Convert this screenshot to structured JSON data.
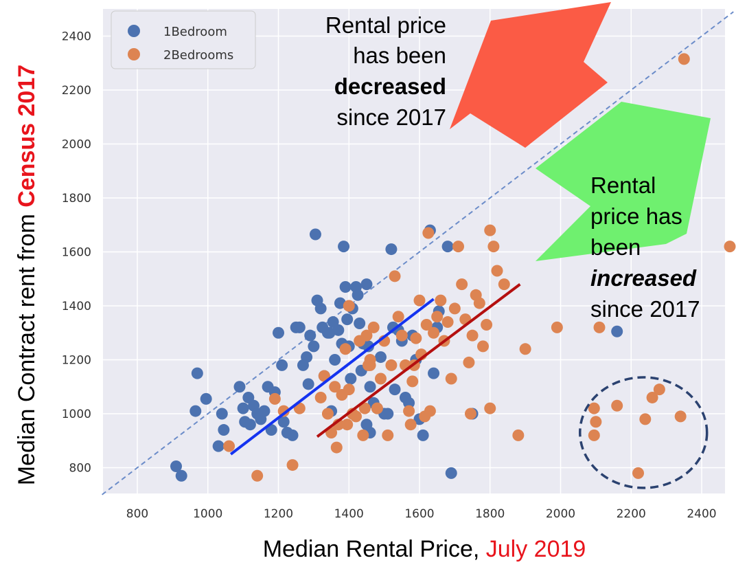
{
  "chart_data": {
    "type": "scatter",
    "xlabel": {
      "main": "Median Rental Price, ",
      "highlight": "July 2019"
    },
    "ylabel": {
      "main": "Median Contract rent from ",
      "highlight": "Census 2017"
    },
    "xlim": [
      700,
      2490
    ],
    "ylim": [
      700,
      2500
    ],
    "x_ticks": [
      800,
      1000,
      1200,
      1400,
      1600,
      1800,
      2000,
      2200,
      2400
    ],
    "y_ticks": [
      800,
      1000,
      1200,
      1400,
      1600,
      1800,
      2000,
      2200,
      2400
    ],
    "grid": true,
    "background_color": "#eaeaf2",
    "legend_position": "top-left",
    "identity_line": {
      "from": [
        700,
        700
      ],
      "to": [
        2490,
        2490
      ],
      "color": "#6b8cc9"
    },
    "series": [
      {
        "name": "1Bedroom",
        "color": "#4c72b0",
        "points": [
          [
            910,
            805
          ],
          [
            925,
            770
          ],
          [
            970,
            1150
          ],
          [
            965,
            1010
          ],
          [
            995,
            1055
          ],
          [
            1040,
            1000
          ],
          [
            1030,
            880
          ],
          [
            1045,
            940
          ],
          [
            1090,
            1100
          ],
          [
            1100,
            1020
          ],
          [
            1105,
            970
          ],
          [
            1115,
            1060
          ],
          [
            1130,
            1030
          ],
          [
            1140,
            1000
          ],
          [
            1120,
            960
          ],
          [
            1150,
            980
          ],
          [
            1160,
            1010
          ],
          [
            1170,
            1100
          ],
          [
            1180,
            940
          ],
          [
            1190,
            1080
          ],
          [
            1200,
            1300
          ],
          [
            1210,
            1180
          ],
          [
            1215,
            970
          ],
          [
            1225,
            930
          ],
          [
            1240,
            920
          ],
          [
            1250,
            1320
          ],
          [
            1260,
            1320
          ],
          [
            1270,
            1180
          ],
          [
            1280,
            1210
          ],
          [
            1285,
            1110
          ],
          [
            1290,
            1290
          ],
          [
            1300,
            1250
          ],
          [
            1305,
            1665
          ],
          [
            1310,
            1420
          ],
          [
            1320,
            1390
          ],
          [
            1325,
            1320
          ],
          [
            1330,
            1140
          ],
          [
            1340,
            1300
          ],
          [
            1345,
            1300
          ],
          [
            1350,
            1010
          ],
          [
            1355,
            1340
          ],
          [
            1360,
            1200
          ],
          [
            1370,
            1310
          ],
          [
            1375,
            1410
          ],
          [
            1380,
            1260
          ],
          [
            1385,
            1620
          ],
          [
            1390,
            1470
          ],
          [
            1395,
            1350
          ],
          [
            1400,
            1250
          ],
          [
            1405,
            1130
          ],
          [
            1410,
            1390
          ],
          [
            1420,
            1470
          ],
          [
            1425,
            1440
          ],
          [
            1430,
            1335
          ],
          [
            1435,
            1160
          ],
          [
            1440,
            1260
          ],
          [
            1450,
            1480
          ],
          [
            1455,
            1250
          ],
          [
            1460,
            1100
          ],
          [
            1470,
            1040
          ],
          [
            1480,
            1020
          ],
          [
            1490,
            1210
          ],
          [
            1500,
            1000
          ],
          [
            1510,
            1000
          ],
          [
            1520,
            1610
          ],
          [
            1525,
            1320
          ],
          [
            1530,
            1090
          ],
          [
            1540,
            1310
          ],
          [
            1550,
            1270
          ],
          [
            1560,
            1060
          ],
          [
            1570,
            1040
          ],
          [
            1580,
            1290
          ],
          [
            1590,
            1200
          ],
          [
            1600,
            980
          ],
          [
            1610,
            920
          ],
          [
            1630,
            1680
          ],
          [
            1640,
            1150
          ],
          [
            1650,
            1320
          ],
          [
            1655,
            1380
          ],
          [
            1680,
            1620
          ],
          [
            1690,
            780
          ],
          [
            1750,
            1000
          ],
          [
            1450,
            960
          ],
          [
            1460,
            930
          ],
          [
            2160,
            1305
          ]
        ]
      },
      {
        "name": "2Bedrooms",
        "color": "#dd8452",
        "points": [
          [
            1060,
            880
          ],
          [
            1140,
            770
          ],
          [
            1190,
            1055
          ],
          [
            1215,
            1010
          ],
          [
            1240,
            810
          ],
          [
            1260,
            1020
          ],
          [
            1320,
            1060
          ],
          [
            1330,
            1140
          ],
          [
            1340,
            1000
          ],
          [
            1350,
            930
          ],
          [
            1360,
            1100
          ],
          [
            1365,
            875
          ],
          [
            1370,
            960
          ],
          [
            1380,
            1070
          ],
          [
            1390,
            1240
          ],
          [
            1395,
            960
          ],
          [
            1400,
            1090
          ],
          [
            1410,
            1000
          ],
          [
            1420,
            990
          ],
          [
            1430,
            1270
          ],
          [
            1440,
            920
          ],
          [
            1445,
            1020
          ],
          [
            1450,
            1290
          ],
          [
            1455,
            1180
          ],
          [
            1460,
            1200
          ],
          [
            1470,
            1320
          ],
          [
            1480,
            1020
          ],
          [
            1490,
            1130
          ],
          [
            1500,
            1270
          ],
          [
            1510,
            920
          ],
          [
            1520,
            1180
          ],
          [
            1530,
            1510
          ],
          [
            1540,
            1360
          ],
          [
            1550,
            1290
          ],
          [
            1560,
            1180
          ],
          [
            1570,
            1010
          ],
          [
            1575,
            960
          ],
          [
            1580,
            1120
          ],
          [
            1585,
            1180
          ],
          [
            1590,
            1280
          ],
          [
            1600,
            1420
          ],
          [
            1605,
            1220
          ],
          [
            1615,
            990
          ],
          [
            1620,
            1330
          ],
          [
            1625,
            1670
          ],
          [
            1630,
            1010
          ],
          [
            1640,
            1300
          ],
          [
            1650,
            1360
          ],
          [
            1660,
            1420
          ],
          [
            1670,
            1270
          ],
          [
            1680,
            1340
          ],
          [
            1690,
            1130
          ],
          [
            1700,
            1390
          ],
          [
            1710,
            1620
          ],
          [
            1720,
            1480
          ],
          [
            1730,
            1350
          ],
          [
            1740,
            1190
          ],
          [
            1750,
            1290
          ],
          [
            1760,
            1440
          ],
          [
            1770,
            1410
          ],
          [
            1780,
            1250
          ],
          [
            1790,
            1330
          ],
          [
            1800,
            1680
          ],
          [
            1810,
            1620
          ],
          [
            1820,
            1530
          ],
          [
            1840,
            1480
          ],
          [
            1800,
            1020
          ],
          [
            1880,
            920
          ],
          [
            1900,
            1240
          ],
          [
            1990,
            1320
          ],
          [
            2110,
            1320
          ],
          [
            2100,
            970
          ],
          [
            2095,
            1020
          ],
          [
            2095,
            920
          ],
          [
            2160,
            1030
          ],
          [
            2240,
            980
          ],
          [
            2260,
            1060
          ],
          [
            2280,
            1090
          ],
          [
            2220,
            780
          ],
          [
            2340,
            990
          ],
          [
            2350,
            2315
          ],
          [
            2490,
            1620
          ],
          [
            1400,
            1400
          ],
          [
            1745,
            1000
          ],
          [
            1460,
            1180
          ]
        ]
      }
    ],
    "trend_lines": [
      {
        "from": [
          1065,
          850
        ],
        "to": [
          1640,
          1425
        ],
        "color": "#1433f0"
      },
      {
        "from": [
          1310,
          915
        ],
        "to": [
          1885,
          1480
        ],
        "color": "#b40f0f"
      }
    ],
    "annotations": {
      "top": {
        "line1": "Rental price",
        "line2": "has been",
        "highlight": "decreased",
        "line4": "since 2017",
        "highlight_color": "#e8141c",
        "arrow_color": "#fb5b45"
      },
      "right": {
        "line1": "Rental",
        "line2": "price has",
        "line3": "been",
        "highlight": "increased",
        "line5": "since 2017",
        "highlight_color": "#1c3ff0",
        "arrow_color": "#6ff06f"
      }
    },
    "outlier_circle": {
      "center": [
        2235,
        930
      ],
      "rx_data": 180,
      "ry_data": 205,
      "color": "#2b4270"
    }
  }
}
